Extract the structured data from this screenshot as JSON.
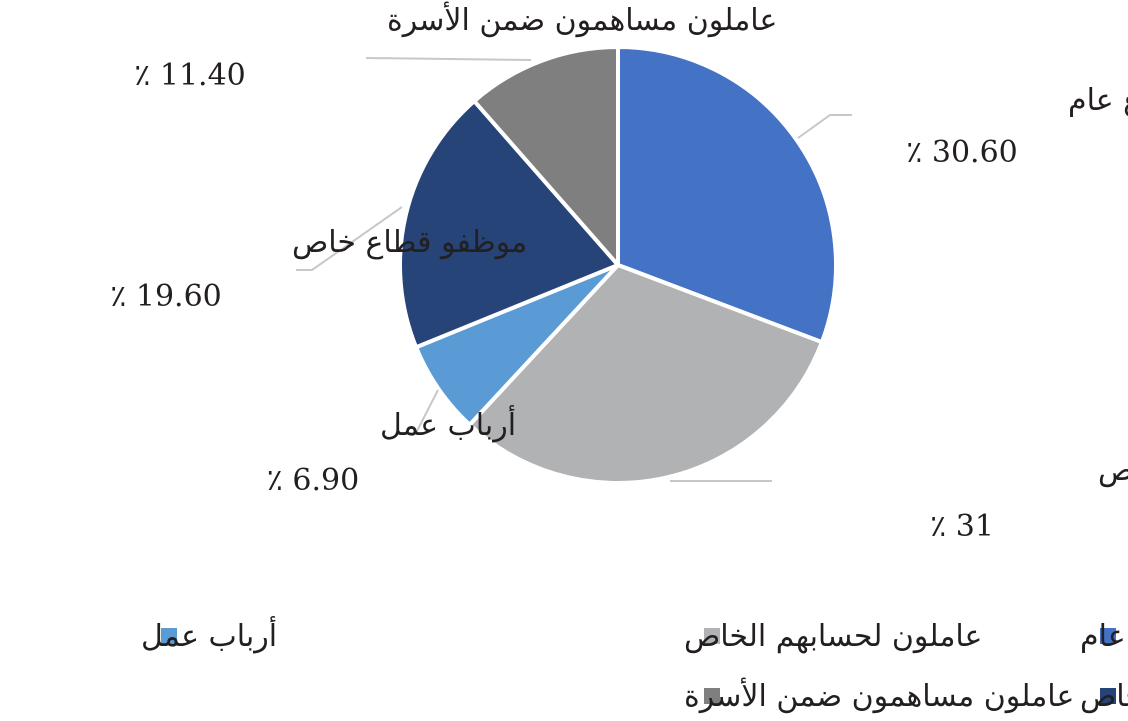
{
  "chart_data": {
    "type": "pie",
    "title": "",
    "slices": [
      {
        "name": "موظفو قطاع عام",
        "value": 30.6,
        "label": "٪ 30.60",
        "color": "#4472c4"
      },
      {
        "name": "عاملون لحسابهم الخاص",
        "value": 31,
        "label": "٪ 31",
        "color": "#b1b2b4"
      },
      {
        "name": "أرباب عمل",
        "value": 6.9,
        "label": "٪ 6.90",
        "color": "#5b9bd5"
      },
      {
        "name": "موظفو قطاع خاص",
        "value": 19.6,
        "label": "٪ 19.60",
        "color": "#264478"
      },
      {
        "name": "عاملون مساهمون ضمن الأسرة",
        "value": 11.4,
        "label": "٪ 11.40",
        "color": "#7f7f7f"
      }
    ],
    "start_angle": "12 o'clock",
    "direction": "clockwise",
    "legend": {
      "position": "bottom",
      "order": [
        "موظفو قطاع عام",
        "عاملون لحسابهم الخاص",
        "أرباب عمل",
        "موظفو قطاع خاص",
        "عاملون مساهمون ضمن الأسرة"
      ]
    }
  }
}
